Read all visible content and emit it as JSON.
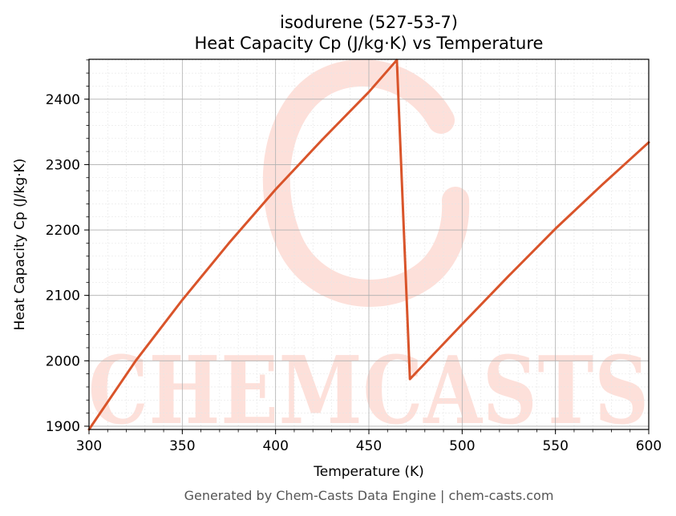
{
  "footer": "Generated by Chem-Casts Data Engine | chem-casts.com",
  "watermark": {
    "text": "CHEMCASTS",
    "color": "#fde0da"
  },
  "chart_data": {
    "type": "line",
    "title": "isodurene (527-53-7)",
    "subtitle": "Heat Capacity Cp (J/kg·K) vs Temperature",
    "xlabel": "Temperature (K)",
    "ylabel": "Heat Capacity Cp (J/kg·K)",
    "xlim": [
      300,
      600
    ],
    "ylim": [
      1895,
      2461
    ],
    "xticks": [
      300,
      350,
      400,
      450,
      500,
      550,
      600
    ],
    "yticks": [
      1900,
      2000,
      2100,
      2200,
      2300,
      2400
    ],
    "grid": true,
    "minor_grid": true,
    "legend": "none",
    "series": [
      {
        "color": "#d9542a",
        "x": [
          300,
          325,
          350,
          375,
          400,
          425,
          450,
          465,
          472,
          500,
          525,
          550,
          575,
          600
        ],
        "y": [
          1895,
          2000,
          2093,
          2180,
          2262,
          2338,
          2411,
          2460,
          1972,
          2056,
          2130,
          2202,
          2269,
          2334
        ]
      }
    ]
  }
}
